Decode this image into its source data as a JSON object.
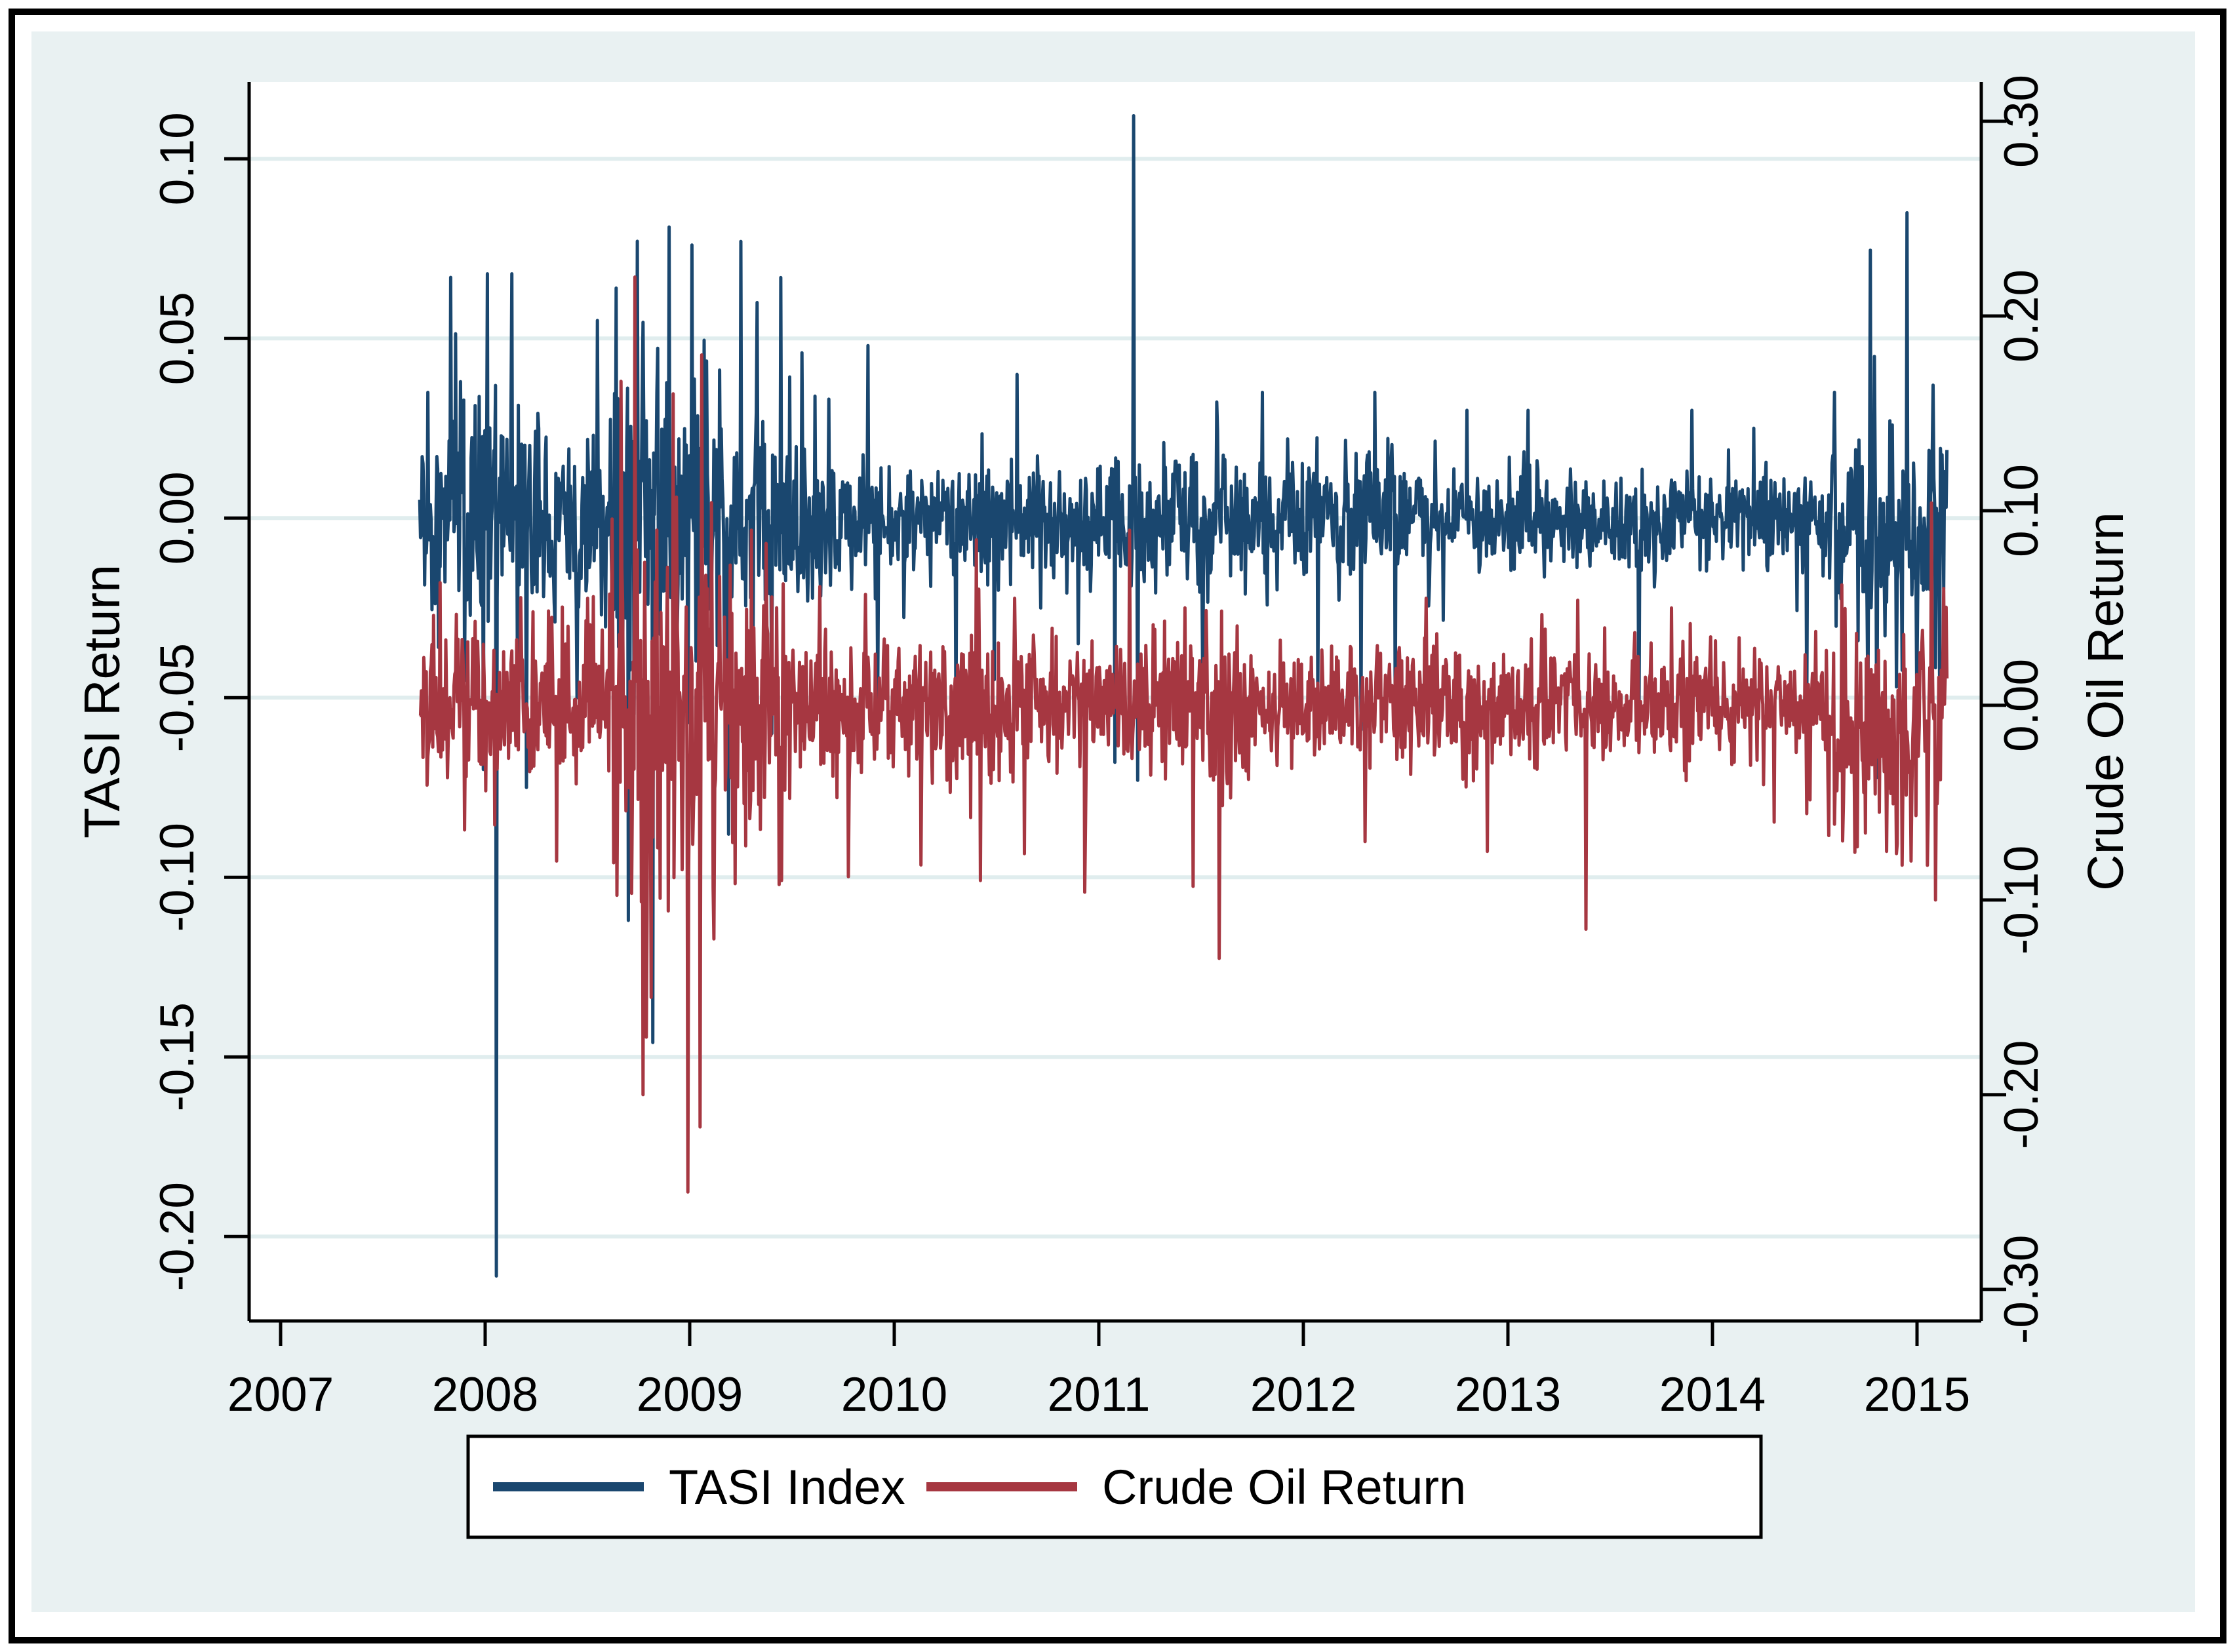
{
  "figure": {
    "canvas_color": "#e9f1f2",
    "plot_background": "#ffffff",
    "grid_color": "#e0edee",
    "axis_color": "#000000",
    "frame_color": "#000000"
  },
  "chart_data": {
    "type": "line",
    "title": "",
    "x_axis": {
      "label": "",
      "tick_labels": [
        "2007",
        "2008",
        "2009",
        "2010",
        "2011",
        "2012",
        "2013",
        "2014",
        "2015"
      ],
      "tick_values": [
        2007,
        2008,
        2009,
        2010,
        2011,
        2012,
        2013,
        2014,
        2015
      ],
      "range": [
        2006.846,
        2015.314
      ],
      "grid": false
    },
    "left_axis": {
      "title": "TASI Return",
      "tick_labels": [
        "0.10",
        "0.05",
        "0.00",
        "-0.05",
        "-0.10",
        "-0.15",
        "-0.20"
      ],
      "tick_values": [
        0.1,
        0.05,
        0.0,
        -0.05,
        -0.1,
        -0.15,
        -0.2
      ],
      "range": [
        -0.2235,
        0.1214
      ],
      "grid": true
    },
    "right_axis": {
      "title": "Crude Oil Return",
      "tick_labels": [
        "0.30",
        "0.20",
        "0.10",
        "0.00",
        "-0.10",
        "-0.20",
        "-0.30"
      ],
      "tick_values": [
        0.3,
        0.2,
        0.1,
        0.0,
        -0.1,
        -0.2,
        -0.3
      ],
      "range": [
        -0.3162,
        0.3202
      ],
      "grid": false
    },
    "legend": [
      {
        "label": "TASI Index",
        "color": "#1a476f"
      },
      {
        "label": "Crude Oil Return",
        "color": "#a63741"
      }
    ],
    "sampling": {
      "points_per_year": 251,
      "start_year": 2007.68,
      "end_year": 2015.15
    },
    "series": [
      {
        "name": "TASI Index",
        "axis": "left",
        "color": "#1a476f",
        "seed": 20081,
        "clamp": [
          -0.215,
          0.115
        ],
        "volatility_windows": [
          [
            2007.68,
            2007.82,
            0.011
          ],
          [
            2007.82,
            2008.35,
            0.018
          ],
          [
            2008.35,
            2008.62,
            0.012
          ],
          [
            2008.62,
            2009.15,
            0.021
          ],
          [
            2009.15,
            2009.65,
            0.013
          ],
          [
            2009.65,
            2010.05,
            0.0095
          ],
          [
            2010.05,
            2011.1,
            0.008
          ],
          [
            2011.1,
            2011.75,
            0.01
          ],
          [
            2011.75,
            2012.15,
            0.0085
          ],
          [
            2012.15,
            2012.65,
            0.01
          ],
          [
            2012.65,
            2014.55,
            0.0065
          ],
          [
            2014.55,
            2015.15,
            0.015
          ]
        ],
        "bias_windows": [
          [
            2014.7,
            2015.0,
            -0.006
          ]
        ],
        "spikes": [
          [
            2007.72,
            0.035
          ],
          [
            2007.77,
            -0.036
          ],
          [
            2007.83,
            0.067
          ],
          [
            2007.99,
            -0.07
          ],
          [
            2008.01,
            0.068
          ],
          [
            2008.055,
            -0.211
          ],
          [
            2008.13,
            0.068
          ],
          [
            2008.2,
            -0.075
          ],
          [
            2008.45,
            -0.05
          ],
          [
            2008.55,
            0.055
          ],
          [
            2008.64,
            0.064
          ],
          [
            2008.7,
            -0.112
          ],
          [
            2008.82,
            -0.146
          ],
          [
            2008.9,
            0.081
          ],
          [
            2009.01,
            0.076
          ],
          [
            2009.19,
            -0.088
          ],
          [
            2009.25,
            0.077
          ],
          [
            2009.33,
            0.06
          ],
          [
            2009.4,
            -0.06
          ],
          [
            2009.55,
            0.046
          ],
          [
            2009.87,
            0.048
          ],
          [
            2009.92,
            -0.05
          ],
          [
            2010.3,
            -0.057
          ],
          [
            2010.49,
            -0.045
          ],
          [
            2010.6,
            0.04
          ],
          [
            2010.9,
            -0.035
          ],
          [
            2011.08,
            -0.068
          ],
          [
            2011.17,
            0.112
          ],
          [
            2011.19,
            -0.073
          ],
          [
            2011.51,
            -0.053
          ],
          [
            2011.8,
            0.035
          ],
          [
            2012.07,
            -0.05
          ],
          [
            2012.28,
            -0.059
          ],
          [
            2012.35,
            0.035
          ],
          [
            2012.45,
            -0.055
          ],
          [
            2012.8,
            0.03
          ],
          [
            2013.1,
            0.03
          ],
          [
            2013.64,
            -0.062
          ],
          [
            2013.9,
            0.03
          ],
          [
            2014.2,
            0.025
          ],
          [
            2014.46,
            -0.056
          ],
          [
            2014.76,
            -0.052
          ],
          [
            2014.79,
            0.045
          ],
          [
            2014.9,
            -0.047
          ],
          [
            2014.95,
            0.085
          ],
          [
            2015.0,
            -0.05
          ],
          [
            2015.08,
            0.037
          ],
          [
            2015.11,
            -0.045
          ]
        ]
      },
      {
        "name": "Crude Oil Return",
        "axis": "right",
        "color": "#a63741",
        "seed": 51372,
        "clamp": [
          -0.255,
          0.225
        ],
        "volatility_windows": [
          [
            2007.68,
            2008.6,
            0.02
          ],
          [
            2008.6,
            2009.15,
            0.052
          ],
          [
            2009.15,
            2009.45,
            0.03
          ],
          [
            2009.45,
            2010.6,
            0.019
          ],
          [
            2010.6,
            2011.5,
            0.017
          ],
          [
            2011.5,
            2011.75,
            0.024
          ],
          [
            2011.75,
            2014.55,
            0.0145
          ],
          [
            2014.55,
            2015.15,
            0.028
          ]
        ],
        "bias_windows": [
          [
            2014.6,
            2015.05,
            -0.018
          ]
        ],
        "spikes": [
          [
            2007.78,
            0.063
          ],
          [
            2007.9,
            -0.064
          ],
          [
            2008.35,
            -0.08
          ],
          [
            2008.5,
            0.055
          ],
          [
            2008.73,
            0.22
          ],
          [
            2008.77,
            -0.2
          ],
          [
            2008.81,
            -0.15
          ],
          [
            2008.84,
            0.09
          ],
          [
            2008.92,
            0.16
          ],
          [
            2008.99,
            -0.25
          ],
          [
            2009.06,
            0.18
          ],
          [
            2009.12,
            -0.12
          ],
          [
            2009.3,
            0.09
          ],
          [
            2009.45,
            -0.09
          ],
          [
            2009.86,
            0.057
          ],
          [
            2010.13,
            -0.082
          ],
          [
            2010.4,
            0.085
          ],
          [
            2010.42,
            -0.09
          ],
          [
            2010.59,
            0.055
          ],
          [
            2010.93,
            -0.096
          ],
          [
            2011.15,
            0.09
          ],
          [
            2011.46,
            -0.093
          ],
          [
            2011.59,
            -0.13
          ],
          [
            2012.3,
            -0.07
          ],
          [
            2012.6,
            0.055
          ],
          [
            2012.9,
            -0.075
          ],
          [
            2013.34,
            0.054
          ],
          [
            2013.38,
            -0.115
          ],
          [
            2013.8,
            0.05
          ],
          [
            2014.3,
            -0.06
          ],
          [
            2014.85,
            -0.075
          ],
          [
            2014.97,
            -0.08
          ],
          [
            2015.07,
            0.104
          ],
          [
            2015.09,
            -0.1
          ],
          [
            2015.13,
            0.06
          ]
        ]
      }
    ]
  }
}
